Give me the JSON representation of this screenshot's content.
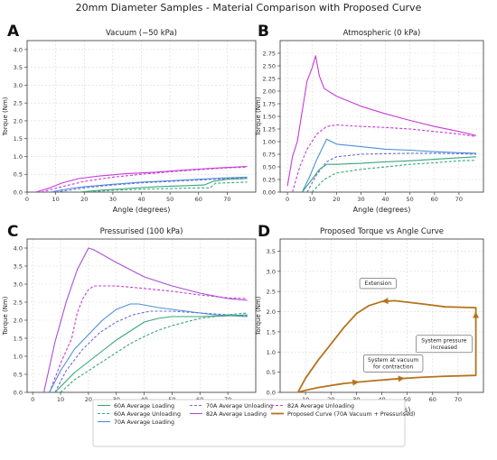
{
  "figure_title": "20mm Diameter Samples - Material Comparison with Proposed Curve",
  "panel_letters": [
    "A",
    "B",
    "C",
    "D"
  ],
  "colors": {
    "green": "#3aa679",
    "blue": "#4a90d9",
    "purple": "#a84fd6",
    "magenta": "#c83bd6",
    "brown": "#b5731e"
  },
  "legend": [
    {
      "label": "60A Average Loading",
      "color": "#3aa679",
      "dash": false
    },
    {
      "label": "60A Average Unloading",
      "color": "#3aa679",
      "dash": true
    },
    {
      "label": "70A Average Loading",
      "color": "#4a90d9",
      "dash": false
    },
    {
      "label": "70A Average Unloading",
      "color": "#6b6bd6",
      "dash": true
    },
    {
      "label": "82A Average Loading",
      "color": "#a84fd6",
      "dash": false
    },
    {
      "label": "82A Average Unloading",
      "color": "#c83bd6",
      "dash": true
    },
    {
      "label": "Proposed Curve (70A Vacuum + Pressurised)",
      "color": "#b5731e",
      "dash": false
    }
  ],
  "chart_data": [
    {
      "type": "line",
      "title": "Vacuum (−50 kPa)",
      "xlabel": "Angle (degrees)",
      "ylabel": "Torque (Nm)",
      "xlim": [
        0,
        80
      ],
      "ylim": [
        0,
        4.25
      ],
      "xticks": [
        0,
        10,
        20,
        30,
        40,
        50,
        60,
        70
      ],
      "yticks": [
        0.0,
        0.5,
        1.0,
        1.5,
        2.0,
        2.5,
        3.0,
        3.5,
        4.0
      ],
      "grid": true,
      "series": [
        {
          "name": "82A Average Loading",
          "color": "#c83bd6",
          "dash": false,
          "x": [
            3,
            8,
            12,
            18,
            25,
            35,
            45,
            55,
            65,
            77
          ],
          "y": [
            0.0,
            0.12,
            0.25,
            0.38,
            0.45,
            0.52,
            0.56,
            0.62,
            0.67,
            0.72
          ]
        },
        {
          "name": "82A Average Unloading",
          "color": "#c83bd6",
          "dash": true,
          "x": [
            5,
            12,
            20,
            30,
            40,
            50,
            60,
            70,
            77
          ],
          "y": [
            0.0,
            0.15,
            0.3,
            0.42,
            0.5,
            0.57,
            0.63,
            0.68,
            0.7
          ]
        },
        {
          "name": "70A Average Loading",
          "color": "#4a90d9",
          "dash": false,
          "x": [
            8,
            15,
            20,
            30,
            40,
            50,
            60,
            70,
            77
          ],
          "y": [
            0.0,
            0.1,
            0.15,
            0.22,
            0.28,
            0.32,
            0.36,
            0.4,
            0.42
          ]
        },
        {
          "name": "70A Average Unloading",
          "color": "#6b6bd6",
          "dash": true,
          "x": [
            10,
            20,
            30,
            40,
            50,
            60,
            70,
            77
          ],
          "y": [
            0.0,
            0.12,
            0.2,
            0.26,
            0.3,
            0.34,
            0.38,
            0.4
          ]
        },
        {
          "name": "60A Average Loading",
          "color": "#3aa679",
          "dash": false,
          "x": [
            18,
            25,
            35,
            45,
            55,
            62,
            65,
            70,
            77
          ],
          "y": [
            0.0,
            0.05,
            0.1,
            0.15,
            0.18,
            0.2,
            0.3,
            0.36,
            0.38
          ]
        },
        {
          "name": "60A Average Unloading",
          "color": "#3aa679",
          "dash": true,
          "x": [
            20,
            30,
            40,
            50,
            60,
            64,
            66,
            70,
            77
          ],
          "y": [
            0.0,
            0.05,
            0.08,
            0.1,
            0.12,
            0.12,
            0.25,
            0.26,
            0.28
          ]
        }
      ]
    },
    {
      "type": "line",
      "title": "Atmospheric (0 kPa)",
      "xlabel": "Angle (degrees)",
      "ylabel": "Torque (Nm)",
      "xlim": [
        -3,
        80
      ],
      "ylim": [
        0,
        3.0
      ],
      "xticks": [
        0,
        10,
        20,
        30,
        40,
        50,
        60,
        70
      ],
      "yticks": [
        0.0,
        0.25,
        0.5,
        0.75,
        1.0,
        1.25,
        1.5,
        1.75,
        2.0,
        2.25,
        2.5,
        2.75
      ],
      "grid": true,
      "series": [
        {
          "name": "82A Average Loading",
          "color": "#c83bd6",
          "dash": false,
          "x": [
            0,
            2,
            4,
            6,
            8,
            10,
            11.5,
            13,
            15,
            20,
            30,
            40,
            50,
            60,
            70,
            77
          ],
          "y": [
            0.12,
            0.7,
            1.0,
            1.6,
            2.2,
            2.45,
            2.7,
            2.3,
            2.05,
            1.9,
            1.7,
            1.55,
            1.42,
            1.3,
            1.2,
            1.12
          ]
        },
        {
          "name": "82A Average Unloading",
          "color": "#c83bd6",
          "dash": true,
          "x": [
            2,
            5,
            8,
            12,
            16,
            20,
            30,
            40,
            50,
            60,
            70,
            77
          ],
          "y": [
            0.0,
            0.5,
            0.85,
            1.15,
            1.3,
            1.33,
            1.3,
            1.28,
            1.25,
            1.2,
            1.15,
            1.1
          ]
        },
        {
          "name": "70A Average Loading",
          "color": "#4a90d9",
          "dash": false,
          "x": [
            6,
            9,
            12,
            14,
            16,
            20,
            30,
            40,
            50,
            60,
            70,
            77
          ],
          "y": [
            0.0,
            0.3,
            0.65,
            0.85,
            1.05,
            0.95,
            0.9,
            0.85,
            0.83,
            0.8,
            0.78,
            0.77
          ]
        },
        {
          "name": "70A Average Unloading",
          "color": "#6b6bd6",
          "dash": true,
          "x": [
            8,
            12,
            16,
            20,
            30,
            40,
            50,
            60,
            70,
            77
          ],
          "y": [
            0.0,
            0.35,
            0.6,
            0.7,
            0.75,
            0.76,
            0.77,
            0.77,
            0.76,
            0.75
          ]
        },
        {
          "name": "60A Average Loading",
          "color": "#3aa679",
          "dash": false,
          "x": [
            6,
            10,
            13,
            16,
            20,
            30,
            40,
            50,
            60,
            70,
            77
          ],
          "y": [
            0.0,
            0.25,
            0.45,
            0.55,
            0.55,
            0.57,
            0.6,
            0.62,
            0.65,
            0.68,
            0.7
          ]
        },
        {
          "name": "60A Average Unloading",
          "color": "#3aa679",
          "dash": true,
          "x": [
            10,
            15,
            20,
            30,
            40,
            50,
            60,
            70,
            77
          ],
          "y": [
            0.0,
            0.25,
            0.38,
            0.45,
            0.5,
            0.55,
            0.58,
            0.62,
            0.63
          ]
        }
      ]
    },
    {
      "type": "line",
      "title": "Pressurised (100 kPa)",
      "xlabel": "Angle (degrees)",
      "ylabel": "Torque (Nm)",
      "xlim": [
        -2,
        80
      ],
      "ylim": [
        0,
        4.25
      ],
      "xticks": [
        0,
        10,
        20,
        30,
        40,
        50,
        60,
        70
      ],
      "yticks": [
        0.0,
        0.5,
        1.0,
        1.5,
        2.0,
        2.5,
        3.0,
        3.5,
        4.0
      ],
      "grid": true,
      "series": [
        {
          "name": "82A Average Loading",
          "color": "#a84fd6",
          "dash": false,
          "x": [
            4,
            8,
            12,
            16,
            20,
            22,
            30,
            40,
            50,
            60,
            70,
            77
          ],
          "y": [
            0.0,
            1.4,
            2.5,
            3.4,
            4.0,
            3.95,
            3.6,
            3.2,
            2.95,
            2.75,
            2.6,
            2.55
          ]
        },
        {
          "name": "82A Average Unloading",
          "color": "#c83bd6",
          "dash": true,
          "x": [
            6,
            10,
            14,
            16,
            18,
            20,
            22,
            30,
            40,
            50,
            60,
            70,
            77
          ],
          "y": [
            0.0,
            0.8,
            1.5,
            2.2,
            2.6,
            2.85,
            2.95,
            2.95,
            2.88,
            2.8,
            2.7,
            2.62,
            2.6
          ]
        },
        {
          "name": "70A Average Loading",
          "color": "#4a90d9",
          "dash": false,
          "x": [
            6,
            10,
            15,
            20,
            25,
            30,
            35,
            38,
            45,
            55,
            65,
            77
          ],
          "y": [
            0.0,
            0.6,
            1.2,
            1.6,
            2.0,
            2.3,
            2.45,
            2.45,
            2.35,
            2.25,
            2.15,
            2.1
          ]
        },
        {
          "name": "70A Average Unloading",
          "color": "#6b6bd6",
          "dash": true,
          "x": [
            8,
            12,
            18,
            24,
            30,
            36,
            42,
            50,
            60,
            70,
            77
          ],
          "y": [
            0.0,
            0.6,
            1.2,
            1.65,
            1.95,
            2.15,
            2.25,
            2.25,
            2.2,
            2.15,
            2.12
          ]
        },
        {
          "name": "60A Average Loading",
          "color": "#3aa679",
          "dash": false,
          "x": [
            8,
            15,
            20,
            25,
            30,
            35,
            40,
            45,
            50,
            60,
            70,
            77
          ],
          "y": [
            0.0,
            0.55,
            0.85,
            1.15,
            1.45,
            1.7,
            1.95,
            2.05,
            2.1,
            2.1,
            2.12,
            2.15
          ]
        },
        {
          "name": "60A Average Unloading",
          "color": "#3aa679",
          "dash": true,
          "x": [
            10,
            15,
            20,
            25,
            30,
            35,
            40,
            45,
            50,
            55,
            60,
            70,
            77
          ],
          "y": [
            0.0,
            0.35,
            0.6,
            0.85,
            1.1,
            1.35,
            1.55,
            1.72,
            1.85,
            1.95,
            2.05,
            2.15,
            2.2
          ]
        }
      ]
    },
    {
      "type": "line",
      "title": "Proposed Torque vs Angle Curve",
      "xlabel": "Angle (degrees)",
      "ylabel": "Torque (Nm)",
      "xlim": [
        0,
        80
      ],
      "ylim": [
        0,
        3.8
      ],
      "xticks": [
        10,
        20,
        30,
        40,
        50,
        60,
        70
      ],
      "yticks": [
        0.0,
        0.5,
        1.0,
        1.5,
        2.0,
        2.5,
        3.0,
        3.5
      ],
      "grid": true,
      "annotations": [
        "Extension",
        "System pressure\nincreased",
        "System at vacuum\nfor contraction"
      ],
      "series": [
        {
          "name": "Proposed Curve (70A Vacuum + Pressurised)",
          "color": "#b5731e",
          "dash": false,
          "x": [
            7,
            10,
            15,
            20,
            25,
            30,
            35,
            40,
            45,
            55,
            65,
            77,
            77,
            77,
            65,
            55,
            45,
            35,
            25,
            15,
            10,
            7
          ],
          "y": [
            0.0,
            0.35,
            0.8,
            1.2,
            1.6,
            1.95,
            2.15,
            2.25,
            2.27,
            2.2,
            2.12,
            2.1,
            1.5,
            0.42,
            0.4,
            0.37,
            0.33,
            0.28,
            0.22,
            0.12,
            0.05,
            0.0
          ]
        }
      ]
    }
  ]
}
